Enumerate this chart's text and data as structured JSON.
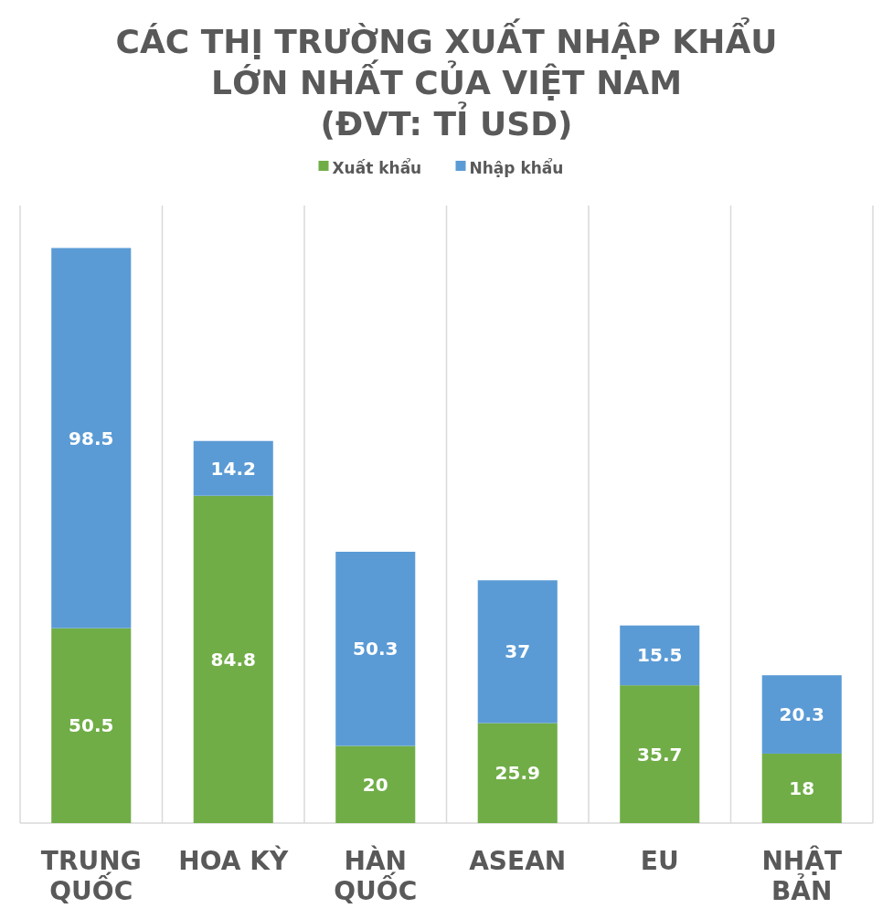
{
  "chart_data": {
    "type": "bar",
    "title": "CÁC THỊ TRƯỜNG XUẤT NHẬP KHẨU\nLỚN NHẤT CỦA VIỆT NAM\n(ĐVT: TỈ USD)",
    "categories": [
      "TRUNG QUỐC",
      "HOA KỲ",
      "HÀN QUỐC",
      "ASEAN",
      "EU",
      "NHẬT BẢN"
    ],
    "stacked": true,
    "ylim": [
      0,
      160
    ],
    "data_labels": true,
    "legend": "top",
    "grid": "x",
    "series": [
      {
        "name": "Xuất khẩu",
        "color": "#70ad47",
        "values": [
          50.5,
          84.8,
          20,
          25.9,
          35.7,
          18
        ]
      },
      {
        "name": "Nhập khẩu",
        "color": "#5b9bd5",
        "values": [
          98.5,
          14.2,
          50.3,
          37,
          15.5,
          20.3
        ]
      }
    ]
  }
}
